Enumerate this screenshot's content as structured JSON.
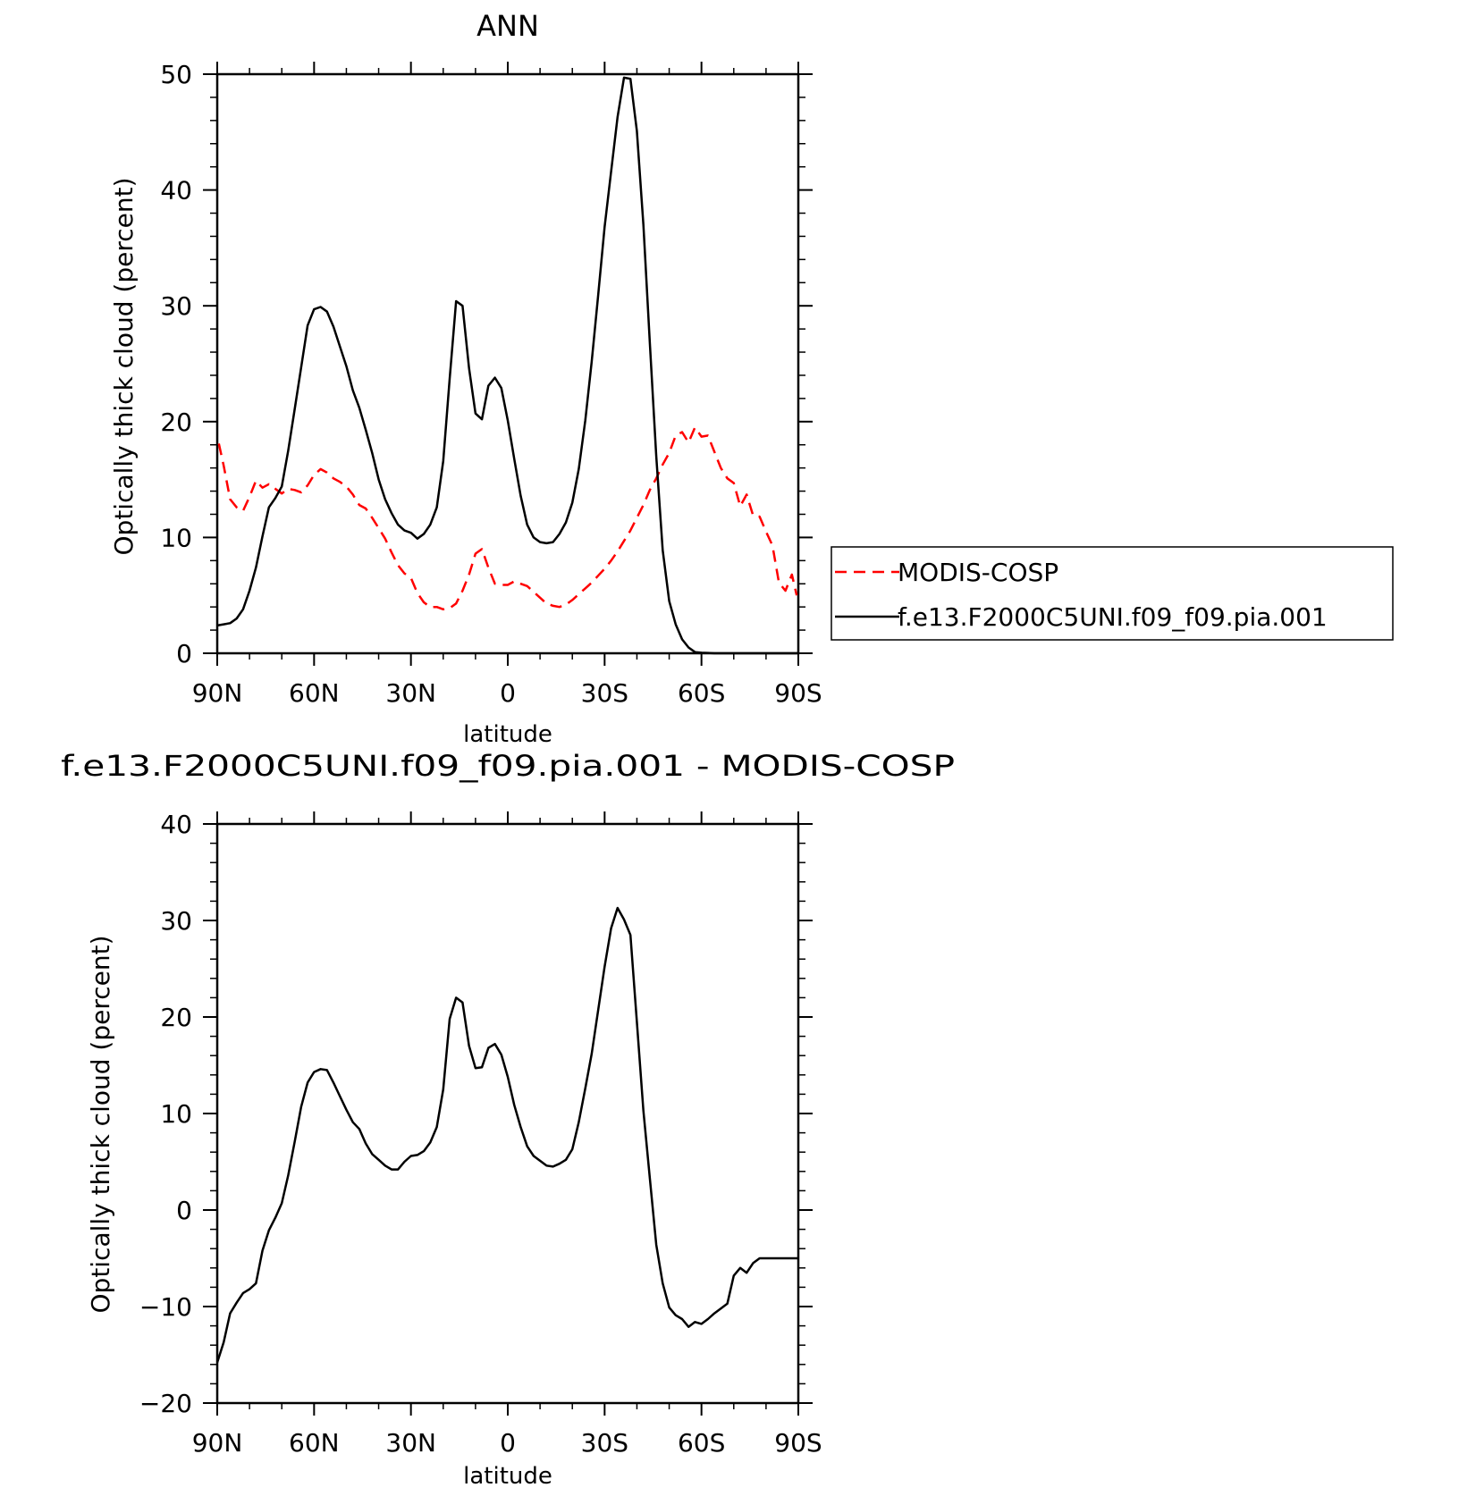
{
  "chart_data": [
    {
      "type": "line",
      "title": "ANN",
      "xlabel": "latitude",
      "ylabel": "Optically thick cloud (percent)",
      "xlim": [
        90,
        -90
      ],
      "ylim": [
        0,
        50
      ],
      "x_ticks": [
        90,
        60,
        30,
        0,
        -30,
        -60,
        -90
      ],
      "x_tick_labels": [
        "90N",
        "60N",
        "30N",
        "0",
        "30S",
        "60S",
        "90S"
      ],
      "y_ticks": [
        0,
        10,
        20,
        30,
        40,
        50
      ],
      "y_tick_labels": [
        "0",
        "10",
        "20",
        "30",
        "40",
        "50"
      ],
      "grid": false,
      "legend_position": "right",
      "series": [
        {
          "name": "MODIS-COSP",
          "color": "#ff0000",
          "dash": "dashed",
          "x": [
            89.5,
            88,
            86,
            84,
            82,
            80,
            78,
            76,
            74,
            72,
            70,
            68,
            66,
            64,
            62,
            60,
            58,
            56,
            54,
            52,
            50,
            48,
            46,
            44,
            42,
            40,
            38,
            36,
            34,
            32,
            30,
            28,
            26,
            24,
            22,
            20,
            18,
            16,
            14,
            12,
            10,
            8,
            6,
            4,
            2,
            0,
            -2,
            -4,
            -6,
            -8,
            -10,
            -12,
            -14,
            -16,
            -18,
            -20,
            -22,
            -24,
            -26,
            -28,
            -30,
            -32,
            -34,
            -36,
            -38,
            -40,
            -42,
            -44,
            -46,
            -48,
            -50,
            -52,
            -54,
            -56,
            -58,
            -60,
            -62,
            -64,
            -66,
            -68,
            -70,
            -72,
            -74,
            -76,
            -78,
            -80,
            -82,
            -84,
            -86,
            -88,
            -89.5
          ],
          "y": [
            18.1,
            16.2,
            13.3,
            12.6,
            12.3,
            13.5,
            14.9,
            14.3,
            14.6,
            14.2,
            13.8,
            14.2,
            14.1,
            13.9,
            14.5,
            15.4,
            15.9,
            15.6,
            15.1,
            14.8,
            14.4,
            13.7,
            12.8,
            12.5,
            11.7,
            10.8,
            9.9,
            8.7,
            7.6,
            6.9,
            6.5,
            5.2,
            4.4,
            4.0,
            4.0,
            3.8,
            3.9,
            4.3,
            5.4,
            6.8,
            8.6,
            9.0,
            7.4,
            6.0,
            5.9,
            5.9,
            6.2,
            6.0,
            5.8,
            5.3,
            4.8,
            4.3,
            4.1,
            4.0,
            4.2,
            4.6,
            5.1,
            5.6,
            6.1,
            6.7,
            7.3,
            8.0,
            8.8,
            9.7,
            10.6,
            11.7,
            12.8,
            14.1,
            15.1,
            16.3,
            17.3,
            18.8,
            19.1,
            18.2,
            19.5,
            18.7,
            18.8,
            17.4,
            16.0,
            15.1,
            14.7,
            12.7,
            13.7,
            11.9,
            11.8,
            10.5,
            9.3,
            6.1,
            5.4,
            6.8,
            5.0
          ]
        },
        {
          "name": "f.e13.F2000C5UNI.f09_f09.pia.001",
          "color": "#000000",
          "dash": "solid",
          "x": [
            90,
            88,
            86,
            84,
            82,
            80,
            78,
            76,
            74,
            72,
            70,
            68,
            66,
            64,
            62,
            60,
            58,
            56,
            54,
            52,
            50,
            48,
            46,
            44,
            42,
            40,
            38,
            36,
            34,
            32,
            30,
            28,
            26,
            24,
            22,
            20,
            18,
            16,
            14,
            12,
            10,
            8,
            6,
            4,
            2,
            0,
            -2,
            -4,
            -6,
            -8,
            -10,
            -12,
            -14,
            -16,
            -18,
            -20,
            -22,
            -24,
            -26,
            -28,
            -30,
            -32,
            -34,
            -36,
            -38,
            -40,
            -42,
            -44,
            -46,
            -48,
            -50,
            -52,
            -54,
            -56,
            -58,
            -60,
            -62,
            -64,
            -66,
            -68,
            -70,
            -72,
            -74,
            -76,
            -78,
            -80,
            -82,
            -84,
            -86,
            -88,
            -90
          ],
          "y": [
            2.4,
            2.5,
            2.6,
            3.0,
            3.8,
            5.4,
            7.4,
            10.1,
            12.6,
            13.4,
            14.4,
            17.5,
            21.1,
            24.7,
            28.3,
            29.7,
            29.9,
            29.5,
            28.2,
            26.5,
            24.8,
            22.7,
            21.2,
            19.3,
            17.3,
            15.0,
            13.3,
            12.1,
            11.1,
            10.6,
            10.4,
            9.9,
            10.3,
            11.1,
            12.6,
            16.6,
            23.7,
            30.4,
            30.0,
            24.6,
            20.7,
            20.2,
            23.1,
            23.8,
            22.9,
            20.1,
            16.8,
            13.6,
            11.1,
            10.0,
            9.6,
            9.5,
            9.6,
            10.3,
            11.3,
            13.0,
            15.9,
            20.1,
            25.2,
            30.9,
            36.8,
            41.6,
            46.3,
            49.7,
            49.6,
            45.1,
            37.0,
            26.8,
            17.0,
            8.9,
            4.5,
            2.5,
            1.2,
            0.5,
            0.1,
            0.05,
            0.03,
            0.0,
            0.0,
            0.0,
            0.0,
            0.0,
            0.0,
            0.0,
            0.0,
            0.0,
            0.0,
            0.0,
            0.0,
            0.0,
            0.0
          ]
        }
      ]
    },
    {
      "type": "line",
      "title": "f.e13.F2000C5UNI.f09_f09.pia.001 - MODIS-COSP",
      "xlabel": "latitude",
      "ylabel": "Optically thick cloud (percent)",
      "xlim": [
        90,
        -90
      ],
      "ylim": [
        -20,
        40
      ],
      "x_ticks": [
        90,
        60,
        30,
        0,
        -30,
        -60,
        -90
      ],
      "x_tick_labels": [
        "90N",
        "60N",
        "30N",
        "0",
        "30S",
        "60S",
        "90S"
      ],
      "y_ticks": [
        -20,
        -10,
        0,
        10,
        20,
        30,
        40
      ],
      "y_tick_labels": [
        "−20",
        "−10",
        "0",
        "10",
        "20",
        "30",
        "40"
      ],
      "grid": false,
      "series": [
        {
          "color": "#000000",
          "dash": "solid",
          "x": [
            90,
            88,
            86,
            84,
            82,
            80,
            78,
            76,
            74,
            72,
            70,
            68,
            66,
            64,
            62,
            60,
            58,
            56,
            54,
            52,
            50,
            48,
            46,
            44,
            42,
            40,
            38,
            36,
            34,
            32,
            30,
            28,
            26,
            24,
            22,
            20,
            18,
            16,
            14,
            12,
            10,
            8,
            6,
            4,
            2,
            0,
            -2,
            -4,
            -6,
            -8,
            -10,
            -12,
            -14,
            -16,
            -18,
            -20,
            -22,
            -24,
            -26,
            -28,
            -30,
            -32,
            -34,
            -36,
            -38,
            -40,
            -42,
            -44,
            -46,
            -48,
            -50,
            -52,
            -54,
            -56,
            -58,
            -60,
            -62,
            -64,
            -66,
            -68,
            -70,
            -72,
            -74,
            -76,
            -78,
            -80,
            -82,
            -84,
            -86,
            -88,
            -90
          ],
          "y": [
            -15.8,
            -13.7,
            -10.7,
            -9.6,
            -8.6,
            -8.2,
            -7.6,
            -4.2,
            -2.1,
            -0.8,
            0.7,
            3.6,
            7.1,
            10.7,
            13.2,
            14.3,
            14.6,
            14.5,
            13.2,
            11.8,
            10.4,
            9.1,
            8.4,
            6.9,
            5.8,
            5.2,
            4.6,
            4.2,
            4.2,
            5.0,
            5.6,
            5.7,
            6.1,
            7.0,
            8.6,
            12.5,
            19.8,
            22.0,
            21.5,
            17.0,
            14.7,
            14.8,
            16.8,
            17.2,
            16.1,
            13.8,
            10.9,
            8.6,
            6.6,
            5.6,
            5.1,
            4.6,
            4.5,
            4.8,
            5.2,
            6.3,
            9.1,
            12.6,
            16.2,
            20.7,
            25.2,
            29.2,
            31.3,
            30.1,
            28.5,
            19.5,
            10.3,
            3.3,
            -3.6,
            -7.6,
            -10.1,
            -10.9,
            -11.3,
            -12.1,
            -11.6,
            -11.8,
            -11.3,
            -10.7,
            -10.2,
            -9.7,
            -6.8,
            -6.0,
            -6.5,
            -5.5,
            -5.0,
            -5.0,
            -5.0,
            -5.0,
            -5.0,
            -5.0,
            -5.0
          ]
        }
      ]
    }
  ],
  "legend": {
    "entries": [
      "MODIS-COSP",
      "f.e13.F2000C5UNI.f09_f09.pia.001"
    ]
  }
}
